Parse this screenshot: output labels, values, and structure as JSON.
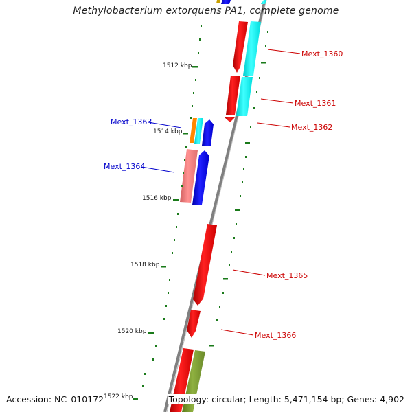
{
  "title": "Methylobacterium extorquens PA1, complete genome",
  "accession": "Accession: NC_010172",
  "summary": "Topology: circular; Length: 5,471,154 bp; Genes: 4,902",
  "colors": {
    "forward": "#ff0000",
    "reverse": "#0000ff",
    "cyan": "#00ffff",
    "backbone": "#808080",
    "tick": "#1a7a1a",
    "label_fwd": "#cc0000",
    "label_rev": "#0000cc"
  },
  "ticks": [
    "1512 kbp",
    "1514 kbp",
    "1516 kbp",
    "1518 kbp",
    "1520 kbp",
    "1522 kbp"
  ],
  "genes_right": [
    "Mext_1360",
    "Mext_1361",
    "Mext_1362",
    "Mext_1365",
    "Mext_1366"
  ],
  "genes_left": [
    "Mext_1363",
    "Mext_1364"
  ]
}
